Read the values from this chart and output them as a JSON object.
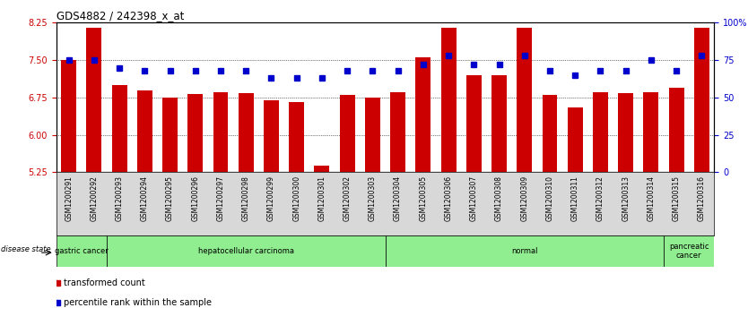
{
  "title": "GDS4882 / 242398_x_at",
  "samples": [
    "GSM1200291",
    "GSM1200292",
    "GSM1200293",
    "GSM1200294",
    "GSM1200295",
    "GSM1200296",
    "GSM1200297",
    "GSM1200298",
    "GSM1200299",
    "GSM1200300",
    "GSM1200301",
    "GSM1200302",
    "GSM1200303",
    "GSM1200304",
    "GSM1200305",
    "GSM1200306",
    "GSM1200307",
    "GSM1200308",
    "GSM1200309",
    "GSM1200310",
    "GSM1200311",
    "GSM1200312",
    "GSM1200313",
    "GSM1200314",
    "GSM1200315",
    "GSM1200316"
  ],
  "bar_values": [
    7.5,
    8.15,
    7.0,
    6.9,
    6.75,
    6.82,
    6.85,
    6.83,
    6.7,
    6.65,
    5.38,
    6.8,
    6.75,
    6.85,
    7.55,
    8.15,
    7.2,
    7.2,
    8.15,
    6.8,
    6.55,
    6.85,
    6.83,
    6.85,
    6.95,
    8.15
  ],
  "percentile_values": [
    75,
    75,
    70,
    68,
    68,
    68,
    68,
    68,
    63,
    63,
    63,
    68,
    68,
    68,
    72,
    78,
    72,
    72,
    78,
    68,
    65,
    68,
    68,
    75,
    68,
    78
  ],
  "ylim_left": [
    5.25,
    8.25
  ],
  "ylim_right": [
    0,
    100
  ],
  "yticks_left": [
    5.25,
    6.0,
    6.75,
    7.5,
    8.25
  ],
  "yticks_right": [
    0,
    25,
    50,
    75,
    100
  ],
  "ytick_labels_right": [
    "0",
    "25",
    "50",
    "75",
    "100%"
  ],
  "bar_color": "#cc0000",
  "percentile_color": "#0000cc",
  "bg_color": "white",
  "xtick_bg_color": "#d8d8d8",
  "groups": [
    {
      "label": "gastric cancer",
      "start": 0,
      "end": 2,
      "color": "#90EE90"
    },
    {
      "label": "hepatocellular carcinoma",
      "start": 2,
      "end": 13,
      "color": "#90EE90"
    },
    {
      "label": "normal",
      "start": 13,
      "end": 24,
      "color": "#90EE90"
    },
    {
      "label": "pancreatic\ncancer",
      "start": 24,
      "end": 26,
      "color": "#90EE90"
    }
  ],
  "disease_state_label": "disease state",
  "legend_bar_label": "transformed count",
  "legend_pct_label": "percentile rank within the sample"
}
